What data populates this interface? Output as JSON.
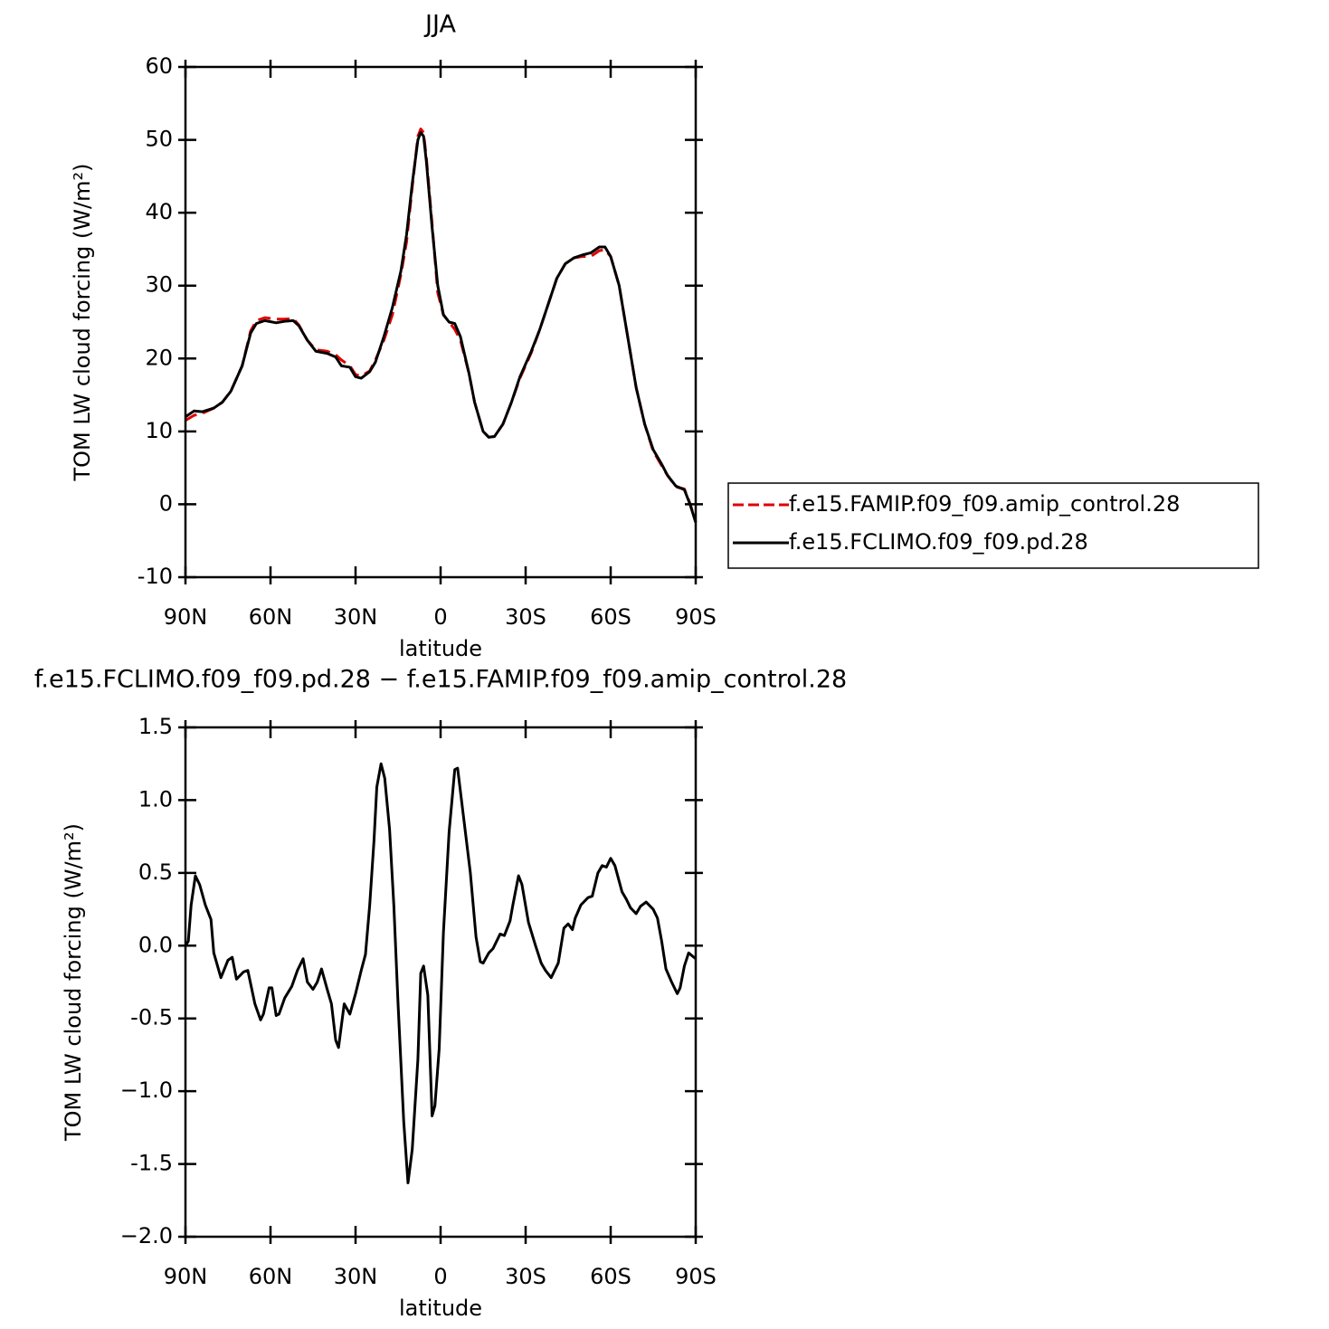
{
  "chart_data": [
    {
      "type": "line",
      "title": "JJA",
      "xlabel": "latitude",
      "ylabel": "TOM LW cloud forcing (W/m²)",
      "xlim": [
        90,
        -90
      ],
      "xticks": [
        {
          "value": 90,
          "label": "90N"
        },
        {
          "value": 60,
          "label": "60N"
        },
        {
          "value": 30,
          "label": "30N"
        },
        0,
        {
          "value": -30,
          "label": "30S"
        },
        {
          "value": -60,
          "label": "60S"
        },
        {
          "value": -90,
          "label": "90S"
        }
      ],
      "ylim": [
        -10,
        60
      ],
      "yticks": [
        -10,
        0,
        10,
        20,
        30,
        40,
        50,
        60
      ],
      "x": [
        90,
        87,
        84,
        80,
        77,
        74,
        70,
        67,
        65,
        62,
        58,
        55,
        52,
        50,
        47,
        44,
        40,
        37,
        35,
        32,
        30,
        28,
        25,
        23,
        20,
        17,
        14,
        12,
        10,
        8,
        7,
        6,
        5,
        3,
        1,
        -1,
        -3,
        -5,
        -7,
        -10,
        -12,
        -15,
        -17,
        -19,
        -22,
        -25,
        -28,
        -32,
        -35,
        -38,
        -41,
        -44,
        -47,
        -50,
        -53,
        -56,
        -58,
        -60,
        -63,
        -66,
        -69,
        -72,
        -75,
        -78,
        -80,
        -83,
        -86,
        -88,
        -90
      ],
      "series": [
        {
          "name": "f.e15.FAMIP.f09_f09.amip_control.28",
          "color": "#e00000",
          "style": "dashed",
          "values": [
            11.5,
            12.2,
            12.5,
            13.2,
            14,
            15.5,
            19,
            23.8,
            25.2,
            25.6,
            25.4,
            25.4,
            25.5,
            24.6,
            22.5,
            21.2,
            21,
            20.5,
            19.8,
            19,
            17.8,
            17.6,
            18.3,
            19.8,
            22.5,
            26,
            31.5,
            36,
            43.5,
            50.5,
            51.5,
            51,
            47.5,
            38.5,
            29,
            26,
            25,
            24,
            22.5,
            18,
            14,
            10,
            9.2,
            9.3,
            11,
            14,
            17.3,
            20.8,
            24,
            27.5,
            31,
            33,
            33.8,
            34,
            34,
            34.8,
            34.9,
            34,
            30,
            23,
            16,
            11,
            7.3,
            5.3,
            4,
            2.4,
            2.1,
            0.1,
            -2.4
          ]
        },
        {
          "name": "f.e15.FCLIMO.f09_f09.pd.28",
          "color": "#000000",
          "style": "solid",
          "values": [
            12,
            12.8,
            12.7,
            13.2,
            14,
            15.5,
            19,
            23.5,
            24.8,
            25.2,
            24.9,
            25.1,
            25.2,
            24.5,
            22.5,
            21,
            20.7,
            20.2,
            19,
            18.8,
            17.5,
            17.3,
            18.2,
            19.5,
            23,
            27,
            32,
            37,
            44,
            50,
            51,
            50.5,
            47,
            38,
            30,
            26,
            25,
            24.8,
            23,
            18,
            14,
            10,
            9.2,
            9.3,
            11,
            14,
            17.5,
            21,
            24,
            27.5,
            31,
            33,
            33.8,
            34.2,
            34.5,
            35.3,
            35.3,
            34,
            30,
            23,
            16,
            11,
            7.5,
            5.5,
            4,
            2.5,
            2,
            0,
            -2.5
          ]
        }
      ]
    },
    {
      "type": "line",
      "title": "f.e15.FCLIMO.f09_f09.pd.28 − f.e15.FAMIP.f09_f09.amip_control.28",
      "xlabel": "latitude",
      "ylabel": "TOM LW cloud forcing (W/m²)",
      "xlim": [
        90,
        -90
      ],
      "xticks": [
        {
          "value": 90,
          "label": "90N"
        },
        {
          "value": 60,
          "label": "60N"
        },
        {
          "value": 30,
          "label": "30N"
        },
        0,
        {
          "value": -30,
          "label": "30S"
        },
        {
          "value": -60,
          "label": "60S"
        },
        {
          "value": -90,
          "label": "90S"
        }
      ],
      "ylim": [
        -2,
        1.5
      ],
      "yticks": [
        {
          "value": -2,
          "label": "−2.0"
        },
        -1.5,
        {
          "value": -1,
          "label": "−1.0"
        },
        -0.5,
        {
          "value": 0,
          "label": "0.0"
        },
        0.5,
        {
          "value": 1,
          "label": "1.0"
        },
        1.5
      ],
      "color": "#000000",
      "x": [
        90,
        89,
        88,
        86.5,
        85,
        83,
        81,
        80,
        77.5,
        75,
        73.5,
        72,
        69.5,
        68,
        65.5,
        63.5,
        62.5,
        60.5,
        59.5,
        58,
        57,
        55,
        52.5,
        50.5,
        48.5,
        47,
        45,
        43.5,
        42,
        40,
        38.5,
        37,
        36,
        34,
        32,
        30,
        28,
        26.5,
        25,
        23.5,
        22.5,
        21,
        19.7,
        18,
        16.5,
        15,
        13,
        11.5,
        10,
        8,
        7,
        6,
        4.5,
        3,
        2,
        0.5,
        -1,
        -3,
        -5,
        -6,
        -8,
        -10.5,
        -12.5,
        -14,
        -15,
        -17,
        -18.5,
        -21,
        -22.5,
        -24.5,
        -25.5,
        -27.5,
        -28.7,
        -31,
        -33.5,
        -35.5,
        -37,
        -39,
        -41.5,
        -43.5,
        -45,
        -46.5,
        -47.5,
        -49.5,
        -52,
        -53.5,
        -55.5,
        -57,
        -58.5,
        -60,
        -61.5,
        -64,
        -65.5,
        -67,
        -69,
        -70.5,
        -72.5,
        -75,
        -76.5,
        -78,
        -79.5,
        -81.5,
        -83.5,
        -84.5,
        -86,
        -87.5,
        -90
      ],
      "values": [
        0,
        0.03,
        0.28,
        0.48,
        0.42,
        0.28,
        0.18,
        -0.05,
        -0.22,
        -0.1,
        -0.08,
        -0.23,
        -0.18,
        -0.17,
        -0.4,
        -0.51,
        -0.47,
        -0.29,
        -0.29,
        -0.48,
        -0.47,
        -0.36,
        -0.28,
        -0.17,
        -0.09,
        -0.25,
        -0.3,
        -0.25,
        -0.16,
        -0.3,
        -0.4,
        -0.65,
        -0.7,
        -0.4,
        -0.47,
        -0.33,
        -0.17,
        -0.06,
        0.28,
        0.72,
        1.09,
        1.25,
        1.15,
        0.8,
        0.28,
        -0.4,
        -1.21,
        -1.63,
        -1.4,
        -0.78,
        -0.19,
        -0.14,
        -0.34,
        -1.17,
        -1.1,
        -0.71,
        0.09,
        0.78,
        1.21,
        1.22,
        0.9,
        0.5,
        0.06,
        -0.11,
        -0.12,
        -0.05,
        -0.02,
        0.08,
        0.07,
        0.17,
        0.28,
        0.48,
        0.42,
        0.16,
        0,
        -0.12,
        -0.17,
        -0.22,
        -0.12,
        0.12,
        0.15,
        0.11,
        0.19,
        0.28,
        0.33,
        0.34,
        0.5,
        0.55,
        0.54,
        0.6,
        0.55,
        0.37,
        0.32,
        0.26,
        0.22,
        0.27,
        0.3,
        0.25,
        0.19,
        0.03,
        -0.16,
        -0.25,
        -0.33,
        -0.29,
        -0.14,
        -0.05,
        -0.09
      ]
    }
  ]
}
